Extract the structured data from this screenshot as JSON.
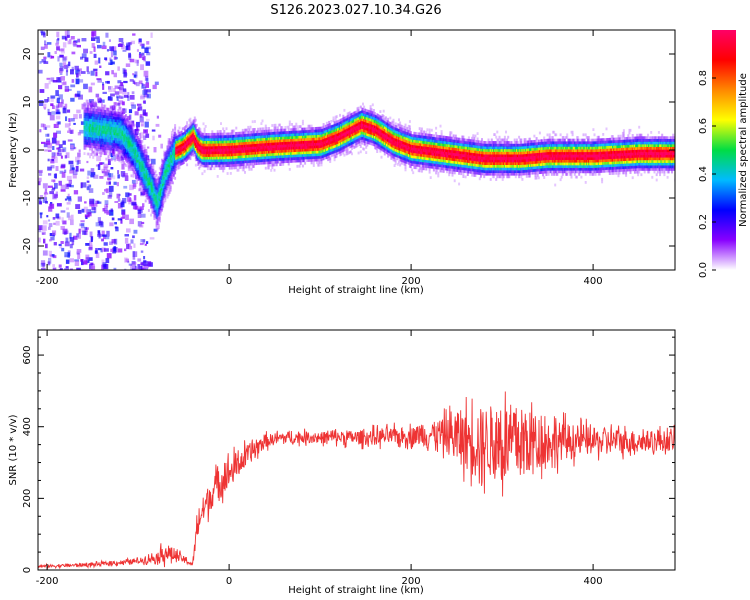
{
  "figure_title": "S126.2023.027.10.34.G26",
  "colors": {
    "snr_line": "#ee3333",
    "axis": "#000000"
  },
  "colormap": [
    "#ffffff",
    "#8800ff",
    "#0000ff",
    "#00bbff",
    "#00dd44",
    "#ffff00",
    "#ff8800",
    "#ff0000",
    "#ff0066"
  ],
  "chart_data": [
    {
      "type": "heatmap",
      "title": "",
      "xlabel": "Height of straight line (km)",
      "ylabel": "Frequency (Hz)",
      "xlim": [
        -210,
        490
      ],
      "ylim": [
        -25,
        25
      ],
      "xticks": [
        -200,
        0,
        200,
        400
      ],
      "yticks": [
        -20,
        -10,
        0,
        10,
        20
      ],
      "colorbar": {
        "label": "Normalized spectral amplitude",
        "range": [
          0,
          1
        ],
        "ticks": [
          0.0,
          0.2,
          0.4,
          0.6,
          0.8
        ]
      },
      "ridge_frequency": {
        "x": [
          -160,
          -140,
          -120,
          -105,
          -95,
          -85,
          -80,
          -70,
          -60,
          -50,
          -40,
          -35,
          -30,
          -20,
          0,
          50,
          100,
          120,
          145,
          160,
          180,
          200,
          240,
          280,
          320,
          350,
          400,
          450,
          490
        ],
        "y": [
          5,
          4.5,
          4,
          0,
          -4,
          -8,
          -11,
          -4,
          0,
          1,
          3,
          1,
          0.2,
          0.2,
          0.3,
          1,
          1.5,
          3,
          5.5,
          4.5,
          2,
          0.5,
          -0.5,
          -1.5,
          -1.5,
          -1,
          -1,
          -0.5,
          -0.5
        ]
      }
    },
    {
      "type": "line",
      "title": "",
      "xlabel": "Height of straight line (km)",
      "ylabel": "SNR (10 * v/v)",
      "xlim": [
        -210,
        490
      ],
      "ylim": [
        0,
        670
      ],
      "xticks": [
        -200,
        0,
        200,
        400
      ],
      "yticks": [
        0,
        200,
        400,
        600
      ],
      "series": [
        {
          "envelope_x": [
            -210,
            -150,
            -100,
            -80,
            -70,
            -50,
            -40,
            -35,
            -30,
            -20,
            -10,
            0,
            20,
            40,
            60,
            100,
            150,
            200,
            230,
            250,
            280,
            300,
            320,
            350,
            400,
            450,
            490
          ],
          "envelope_mean": [
            10,
            15,
            25,
            35,
            50,
            30,
            15,
            120,
            160,
            210,
            250,
            270,
            320,
            360,
            370,
            370,
            370,
            375,
            380,
            370,
            360,
            355,
            355,
            360,
            360,
            360,
            360
          ],
          "envelope_amp": [
            5,
            8,
            12,
            20,
            45,
            15,
            10,
            60,
            60,
            70,
            70,
            70,
            50,
            30,
            25,
            25,
            35,
            40,
            60,
            110,
            160,
            190,
            170,
            100,
            60,
            50,
            45
          ]
        }
      ]
    }
  ]
}
